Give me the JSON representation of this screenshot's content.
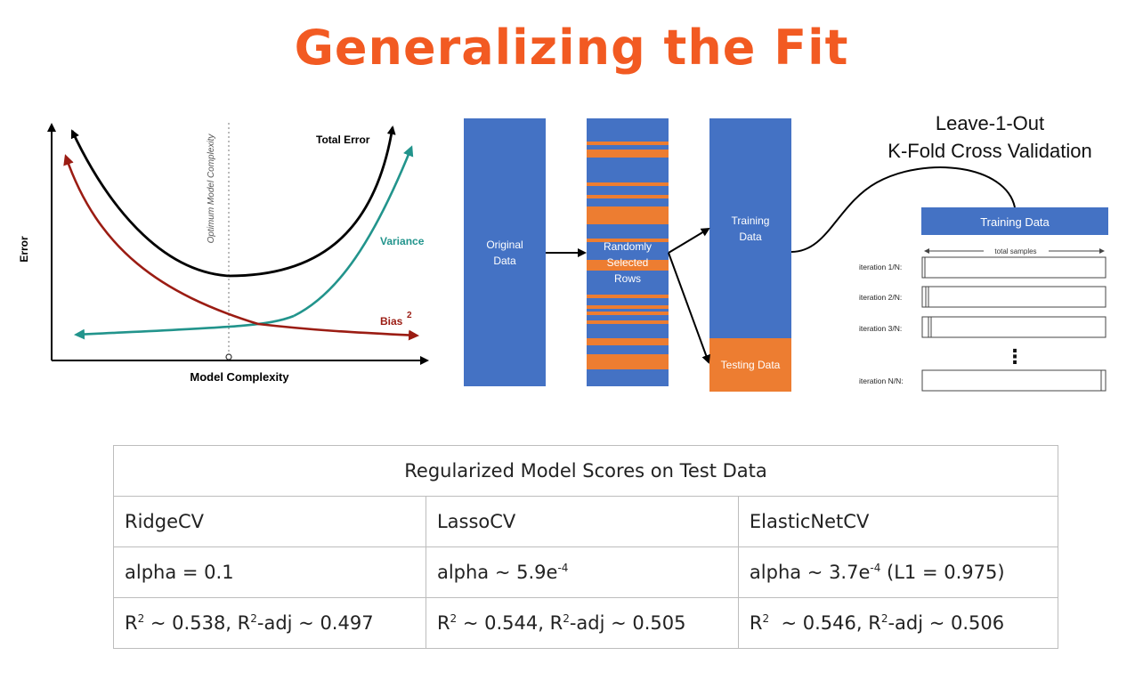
{
  "title": "Generalizing the Fit",
  "colors": {
    "title": "#f25a22",
    "blue": "#4472c4",
    "orange": "#ed7d31",
    "total_error": "#000000",
    "variance": "#22948c",
    "bias": "#9b1c13"
  },
  "bias_variance": {
    "y_label": "Error",
    "x_label": "Model Complexity",
    "optimum_label": "Optimum Model Complexity",
    "total_error": "Total Error",
    "variance": "Variance",
    "bias": "Bias",
    "bias_sup": "2"
  },
  "split": {
    "original": [
      "Original",
      "Data"
    ],
    "random": [
      "Randomly",
      "Selected",
      "Rows"
    ],
    "training": [
      "Training",
      "Data"
    ],
    "testing": "Testing Data"
  },
  "cv": {
    "title_line1": "Leave-1-Out",
    "title_line2": "K-Fold Cross Validation",
    "training_box": "Training Data",
    "total_samples": "total samples",
    "iterations": [
      "iteration 1/N:",
      "iteration 2/N:",
      "iteration 3/N:",
      "iteration N/N:"
    ],
    "ellipsis": "⋮"
  },
  "table": {
    "header": "Regularized Model Scores on Test Data",
    "models": [
      "RidgeCV",
      "LassoCV",
      "ElasticNetCV"
    ],
    "alpha": [
      {
        "pre": "alpha = 0.1",
        "sup": "",
        "post": ""
      },
      {
        "pre": "alpha ~ 5.9e",
        "sup": "-4",
        "post": ""
      },
      {
        "pre": "alpha ~ 3.7e",
        "sup": "-4",
        "post": " (L1 = 0.975)"
      }
    ],
    "r2": [
      {
        "a": "R",
        "s1": "2",
        "b": " ~ 0.538, R",
        "s2": "2",
        "c": "-adj ~ 0.497"
      },
      {
        "a": "R",
        "s1": "2",
        "b": " ~ 0.544, R",
        "s2": "2",
        "c": "-adj ~ 0.505"
      },
      {
        "a": "R",
        "s1": "2",
        "b": "  ~ 0.546, R",
        "s2": "2",
        "c": "-adj ~ 0.506"
      }
    ]
  }
}
